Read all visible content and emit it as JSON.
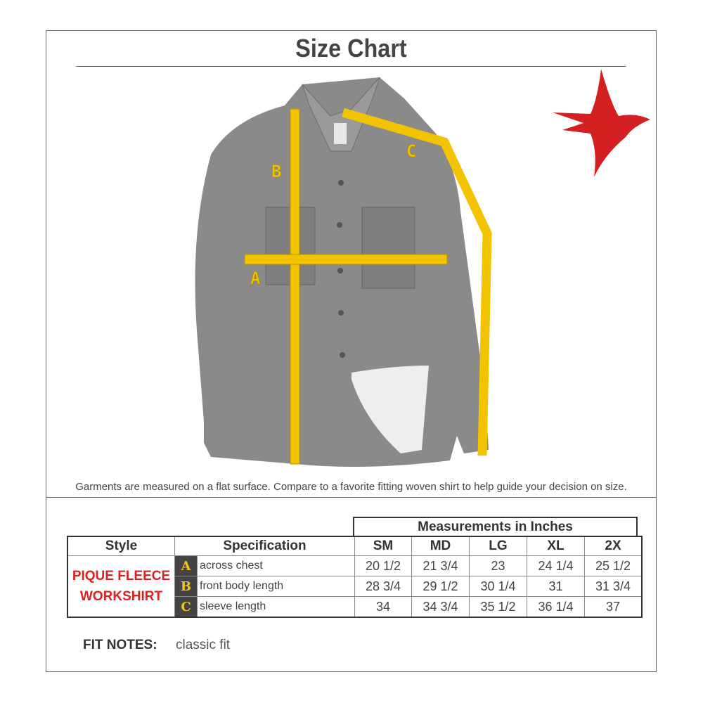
{
  "title": "Size Chart",
  "caption": "Garments are measured on a flat surface. Compare to a favorite fitting woven shirt to help guide your decision on size.",
  "diagram": {
    "labels": {
      "a": "A",
      "b": "B",
      "c": "C"
    },
    "tape_color": "#f2c300",
    "bird_color": "#d42020",
    "icon": "swallow-bird-logo"
  },
  "table": {
    "group_header": "Measurements in Inches",
    "headers": {
      "style": "Style",
      "specification": "Specification",
      "sizes": [
        "SM",
        "MD",
        "LG",
        "XL",
        "2X"
      ]
    },
    "style_name": "PIQUE FLEECE WORKSHIRT",
    "rows": [
      {
        "letter": "A",
        "spec": "across chest",
        "values": [
          "20 1/2",
          "21 3/4",
          "23",
          "24 1/4",
          "25 1/2"
        ]
      },
      {
        "letter": "B",
        "spec": "front body length",
        "values": [
          "28 3/4",
          "29 1/2",
          "30 1/4",
          "31",
          "31 3/4"
        ]
      },
      {
        "letter": "C",
        "spec": "sleeve length",
        "values": [
          "34",
          "34 3/4",
          "35 1/2",
          "36 1/4",
          "37"
        ]
      }
    ]
  },
  "fit_notes": {
    "label": "FIT NOTES:",
    "value": "classic fit"
  }
}
